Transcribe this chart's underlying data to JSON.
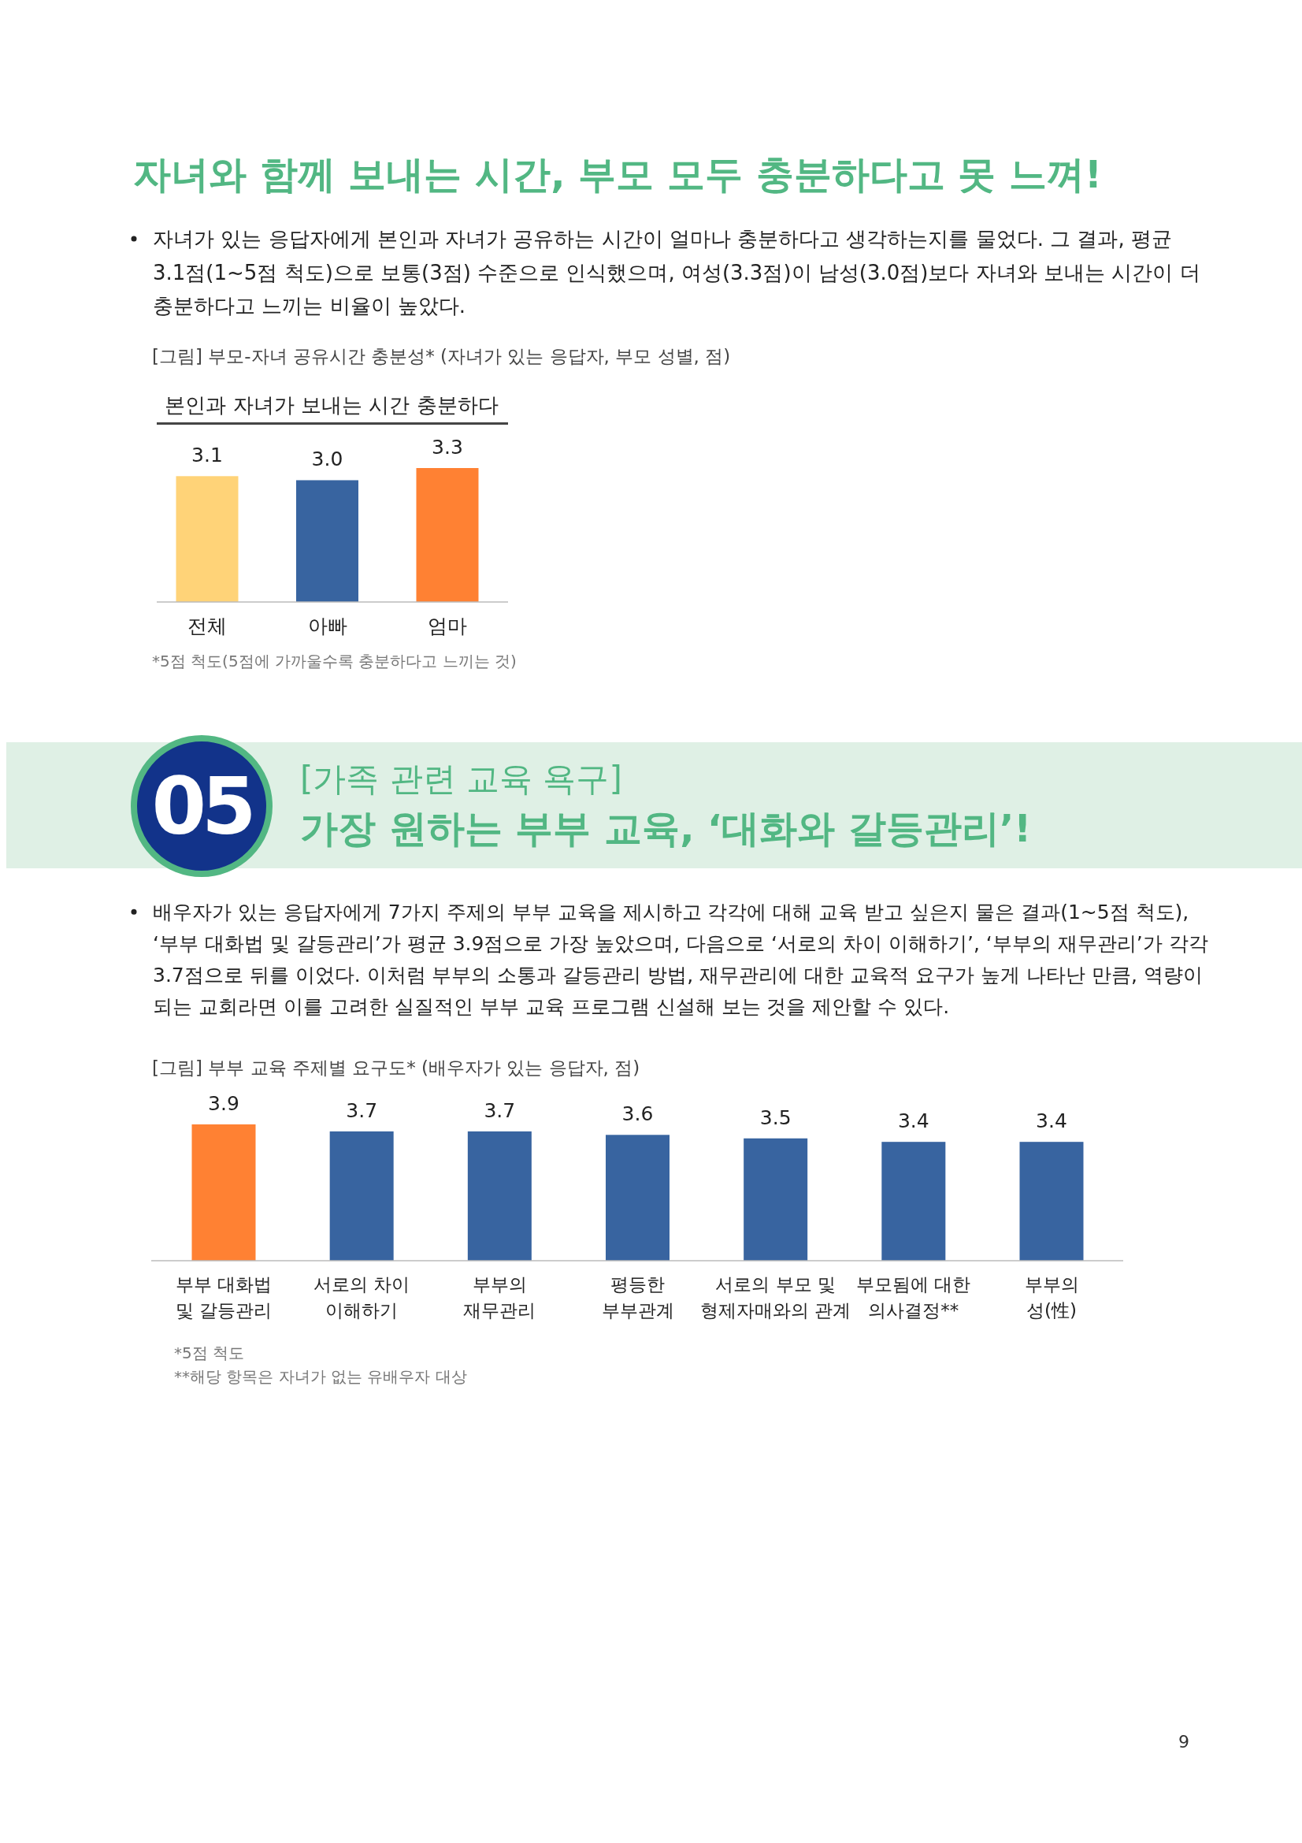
{
  "chart_data": [
    {
      "type": "bar",
      "title": "자녀와 함께 보내는 시간, 부모 모두 충분하다고 못 느껴!",
      "subtitle": "본인과 자녀가 보내는 시간 충분하다",
      "categories": [
        "전체",
        "아빠",
        "엄마"
      ],
      "values": [
        3.1,
        3.0,
        3.3
      ],
      "value_labels": [
        "3.1",
        "3.0",
        "3.3"
      ],
      "colors": [
        "#ffd378",
        "#3864a0",
        "#ff8133"
      ],
      "annotations": [
        "자녀가 있는 응답자에게 본인과 자녀가 공유하는 시간이 얼마나 충분하다고 생각하는지를 물었다. 그 결과, 평균 3.1점(1~5점 척도)으로 보통(3점) 수준으로 인식했으며, 여성(3.3점)이 남성(3.0점)보다 자녀와 보내는 시간이 더 충분하다고 느끼는 비율이 높았다.",
        "[그림] 부모-자녀 공유시간 충분성* (자녀가 있는 응답자, 부모 성별, 점)",
        "*5점 척도(5점에 가까울수록 충분하다고 느끼는 것)"
      ]
    },
    {
      "type": "bar",
      "title": "가장 원하는 부부 교육, ‘대화와 갈등관리’!",
      "subtitle": "[가족 관련 교육 욕구]",
      "categories": [
        "부부 대화법\n및 갈등관리",
        "서로의 차이\n이해하기",
        "부부의\n재무관리",
        "평등한\n부부관계",
        "서로의 부모 및\n형제자매와의 관계",
        "부모됨에 대한\n의사결정**",
        "부부의\n성(性)"
      ],
      "values": [
        3.9,
        3.7,
        3.7,
        3.6,
        3.5,
        3.4,
        3.4
      ],
      "value_labels": [
        "3.9",
        "3.7",
        "3.7",
        "3.6",
        "3.5",
        "3.4",
        "3.4"
      ],
      "colors": [
        "#ff8133",
        "#3864a0",
        "#3864a0",
        "#3864a0",
        "#3864a0",
        "#3864a0",
        "#3864a0"
      ],
      "annotations": [
        "05",
        "배우자가 있는 응답자에게 7가지 주제의 부부 교육을 제시하고 각각에 대해 교육 받고 싶은지 물은 결과(1~5점 척도), ‘부부 대화법 및 갈등관리’가 평균 3.9점으로 가장 높았으며, 다음으로 ‘서로의 차이 이해하기’, ‘부부의 재무관리’가 각각 3.7점으로 뒤를 이었다. 이처럼 부부의 소통과 갈등관리 방법, 재무관리에 대한 교육적 요구가 높게 나타난 만큼, 역량이 되는 교회라면 이를 고려한 실질적인 부부 교육 프로그램 신설해 보는 것을 제안할 수 있다.",
        "[그림] 부부 교육 주제별 요구도* (배우자가 있는 응답자, 점)",
        "*5점 척도",
        "**해당 항목은 자녀가 없는 유배우자 대상",
        "9"
      ]
    }
  ]
}
